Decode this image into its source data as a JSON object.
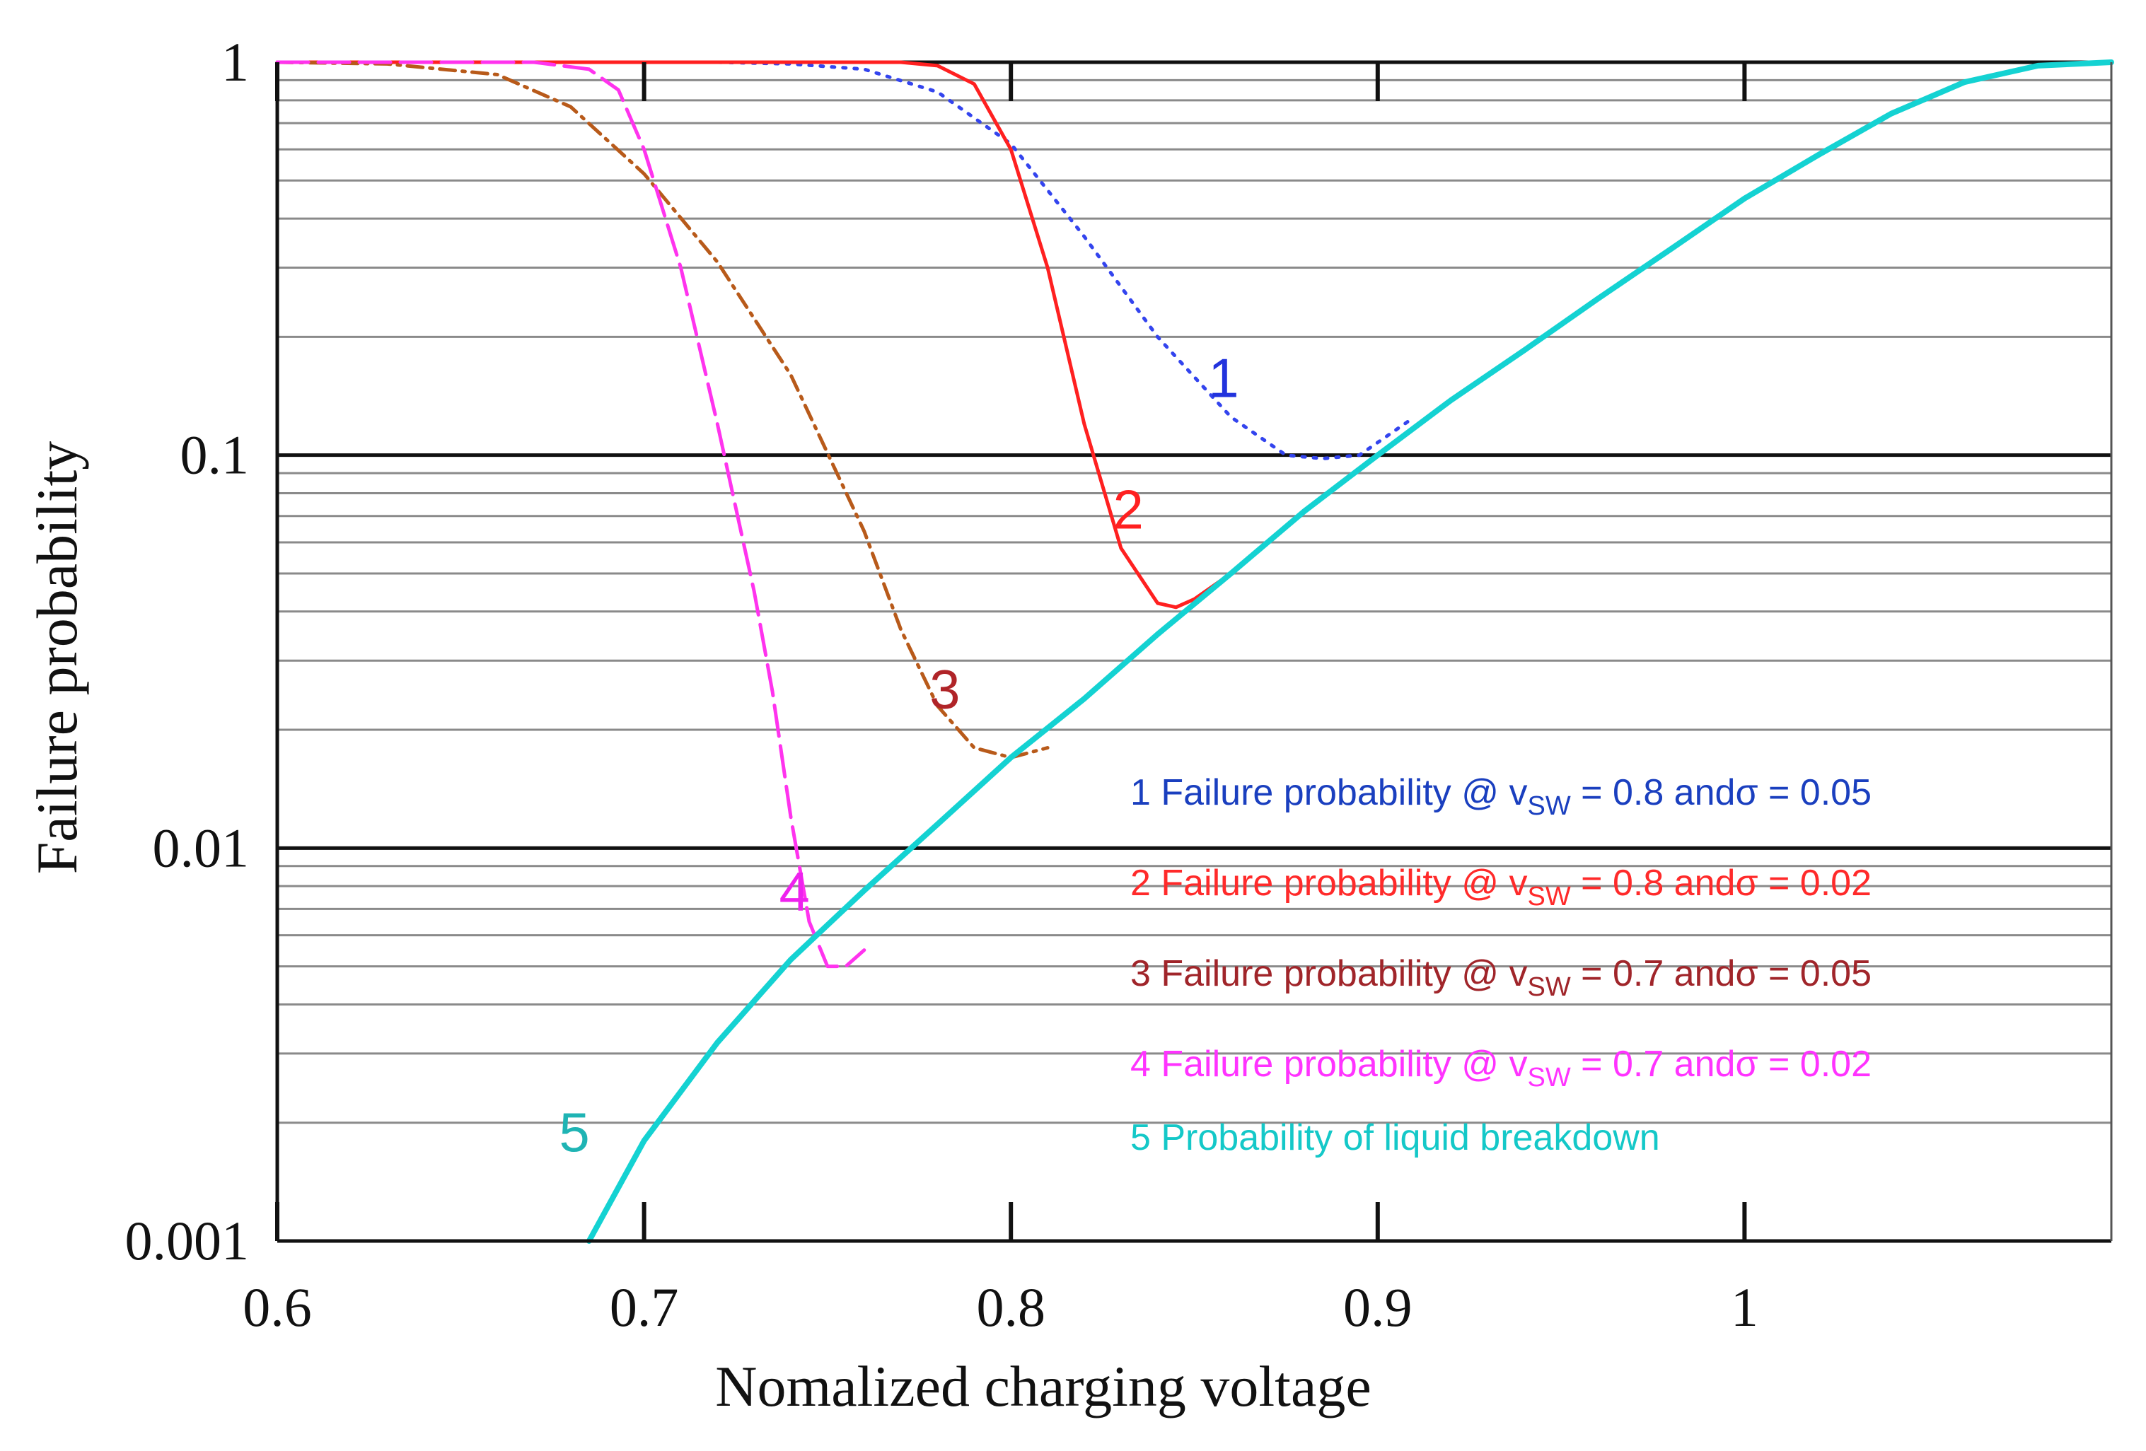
{
  "chart_data": {
    "type": "line",
    "title": "",
    "xlabel": "Nomalized charging voltage",
    "ylabel": "Failure probability",
    "xlim": [
      0.6,
      1.1
    ],
    "ylim": [
      0.001,
      1
    ],
    "yscale": "log",
    "x_ticks": [
      0.6,
      0.7,
      0.8,
      0.9,
      1.0
    ],
    "x_tick_labels": [
      "0.6",
      "0.7",
      "0.8",
      "0.9",
      "1"
    ],
    "y_ticks": [
      0.001,
      0.01,
      0.1,
      1
    ],
    "y_tick_labels": [
      "0.001",
      "0.01",
      "0.1",
      "1"
    ],
    "grid": true,
    "legend": [
      {
        "id": "1",
        "text": "1 Failure probability @ v",
        "sub": "SW",
        "rest": " = 0.8 andσ = 0.05",
        "color": "#1a3fbf"
      },
      {
        "id": "2",
        "text": "2 Failure probability @ v",
        "sub": "SW",
        "rest": " = 0.8 andσ = 0.02",
        "color": "#ff2a2a"
      },
      {
        "id": "3",
        "text": "3 Failure probability @ v",
        "sub": "SW",
        "rest": " = 0.7 andσ = 0.05",
        "color": "#a0252a"
      },
      {
        "id": "4",
        "text": "4 Failure probability @ v",
        "sub": "SW",
        "rest": " = 0.7 andσ = 0.02",
        "color": "#ff33ff"
      },
      {
        "id": "5",
        "text": "5 Probability of liquid breakdown",
        "sub": "",
        "rest": "",
        "color": "#14c8c8"
      }
    ],
    "series": [
      {
        "name": "1",
        "color": "#3344ee",
        "dash": "dotted",
        "label": "1",
        "label_color": "#2233dd",
        "label_at": [
          0.858,
          0.158
        ],
        "points": [
          [
            0.6,
            1
          ],
          [
            0.72,
            1
          ],
          [
            0.74,
            0.99
          ],
          [
            0.76,
            0.96
          ],
          [
            0.78,
            0.84
          ],
          [
            0.8,
            0.62
          ],
          [
            0.82,
            0.36
          ],
          [
            0.84,
            0.2
          ],
          [
            0.86,
            0.125
          ],
          [
            0.875,
            0.1
          ],
          [
            0.885,
            0.098
          ],
          [
            0.895,
            0.1
          ],
          [
            0.91,
            0.125
          ]
        ]
      },
      {
        "name": "2",
        "color": "#ff2020",
        "dash": "solid",
        "label": "2",
        "label_color": "#ff2020",
        "label_at": [
          0.832,
          0.073
        ],
        "points": [
          [
            0.6,
            1
          ],
          [
            0.77,
            1
          ],
          [
            0.78,
            0.98
          ],
          [
            0.79,
            0.88
          ],
          [
            0.8,
            0.6
          ],
          [
            0.81,
            0.3
          ],
          [
            0.82,
            0.12
          ],
          [
            0.83,
            0.058
          ],
          [
            0.84,
            0.042
          ],
          [
            0.845,
            0.041
          ],
          [
            0.85,
            0.043
          ],
          [
            0.86,
            0.05
          ]
        ]
      },
      {
        "name": "3",
        "color": "#b85a1a",
        "dash": "dashdot",
        "label": "3",
        "label_color": "#b02428",
        "label_at": [
          0.782,
          0.0255
        ],
        "points": [
          [
            0.6,
            1
          ],
          [
            0.63,
            0.99
          ],
          [
            0.66,
            0.93
          ],
          [
            0.68,
            0.77
          ],
          [
            0.7,
            0.52
          ],
          [
            0.72,
            0.31
          ],
          [
            0.74,
            0.16
          ],
          [
            0.76,
            0.064
          ],
          [
            0.77,
            0.036
          ],
          [
            0.78,
            0.023
          ],
          [
            0.79,
            0.018
          ],
          [
            0.8,
            0.017
          ],
          [
            0.81,
            0.018
          ]
        ]
      },
      {
        "name": "4",
        "color": "#ff33ee",
        "dash": "longdash",
        "label": "4",
        "label_color": "#ee22ee",
        "label_at": [
          0.741,
          0.0078
        ],
        "points": [
          [
            0.6,
            1
          ],
          [
            0.67,
            1
          ],
          [
            0.685,
            0.96
          ],
          [
            0.693,
            0.85
          ],
          [
            0.7,
            0.6
          ],
          [
            0.71,
            0.3
          ],
          [
            0.72,
            0.12
          ],
          [
            0.73,
            0.045
          ],
          [
            0.735,
            0.025
          ],
          [
            0.74,
            0.012
          ],
          [
            0.745,
            0.0065
          ],
          [
            0.75,
            0.005
          ],
          [
            0.755,
            0.005
          ],
          [
            0.76,
            0.0055
          ]
        ]
      },
      {
        "name": "5",
        "color": "#14d2d2",
        "dash": "solid",
        "label": "5",
        "label_color": "#1fb4b4",
        "label_at": [
          0.681,
          0.0019
        ],
        "points": [
          [
            0.685,
            0.001
          ],
          [
            0.7,
            0.0018
          ],
          [
            0.72,
            0.0032
          ],
          [
            0.74,
            0.0052
          ],
          [
            0.76,
            0.0078
          ],
          [
            0.78,
            0.0115
          ],
          [
            0.8,
            0.017
          ],
          [
            0.82,
            0.024
          ],
          [
            0.84,
            0.035
          ],
          [
            0.86,
            0.05
          ],
          [
            0.88,
            0.072
          ],
          [
            0.9,
            0.1
          ],
          [
            0.92,
            0.138
          ],
          [
            0.94,
            0.185
          ],
          [
            0.96,
            0.25
          ],
          [
            0.98,
            0.335
          ],
          [
            1.0,
            0.45
          ],
          [
            1.02,
            0.58
          ],
          [
            1.04,
            0.74
          ],
          [
            1.06,
            0.89
          ],
          [
            1.08,
            0.98
          ],
          [
            1.1,
            1
          ]
        ]
      }
    ]
  }
}
